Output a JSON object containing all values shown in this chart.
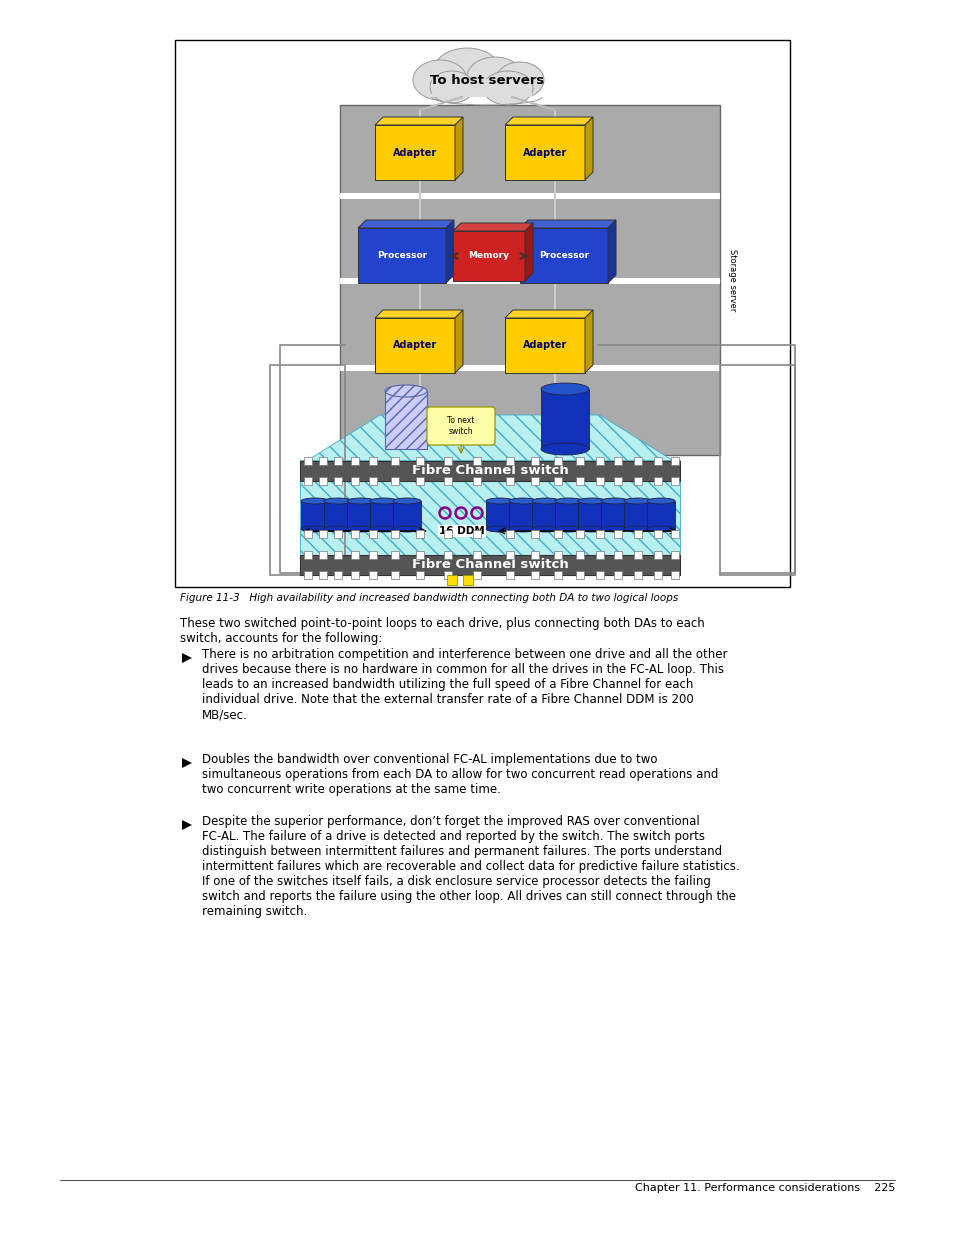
{
  "page_bg": "#ffffff",
  "figure_caption": "Figure 11-3   High availability and increased bandwidth connecting both DA to two logical loops",
  "para1": "These two switched point-to-point loops to each drive, plus connecting both DAs to each\nswitch, accounts for the following:",
  "bullet1": "There is no arbitration competition and interference between one drive and all the other\ndrives because there is no hardware in common for all the drives in the FC-AL loop. This\nleads to an increased bandwidth utilizing the full speed of a Fibre Channel for each\nindividual drive. Note that the external transfer rate of a Fibre Channel DDM is 200\nMB/sec.",
  "bullet2": "Doubles the bandwidth over conventional FC-AL implementations due to two\nsimultaneous operations from each DA to allow for two concurrent read operations and\ntwo concurrent write operations at the same time.",
  "bullet3": "Despite the superior performance, don’t forget the improved RAS over conventional\nFC-AL. The failure of a drive is detected and reported by the switch. The switch ports\ndistinguish between intermittent failures and permanent failures. The ports understand\nintermittent failures which are recoverable and collect data for predictive failure statistics.\nIf one of the switches itself fails, a disk enclosure service processor detects the failing\nswitch and reports the failure using the other loop. All drives can still connect through the\nremaining switch.",
  "footer_text": "Chapter 11. Performance considerations    225"
}
